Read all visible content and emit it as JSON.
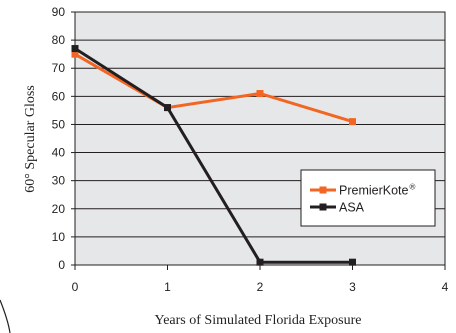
{
  "chart_data": {
    "type": "line",
    "title": "",
    "xlabel": "Years of Simulated Florida Exposure",
    "ylabel": "60° Specular Gloss",
    "xlim": [
      0,
      4
    ],
    "ylim": [
      0,
      90
    ],
    "xticks": [
      "0",
      "1",
      "2",
      "3",
      "4"
    ],
    "yticks": [
      "0",
      "10",
      "20",
      "30",
      "40",
      "50",
      "60",
      "70",
      "80",
      "90"
    ],
    "grid": "horizontal",
    "legend_position": "right",
    "series": [
      {
        "name": "PremierKote",
        "name_superscript": "®",
        "color": "#f26522",
        "marker": "square",
        "x": [
          0,
          1,
          2,
          3
        ],
        "y": [
          75,
          56,
          61,
          51
        ]
      },
      {
        "name": "ASA",
        "color": "#231f20",
        "marker": "square",
        "x": [
          0,
          1,
          2,
          3
        ],
        "y": [
          77,
          56,
          1,
          1
        ]
      }
    ]
  }
}
